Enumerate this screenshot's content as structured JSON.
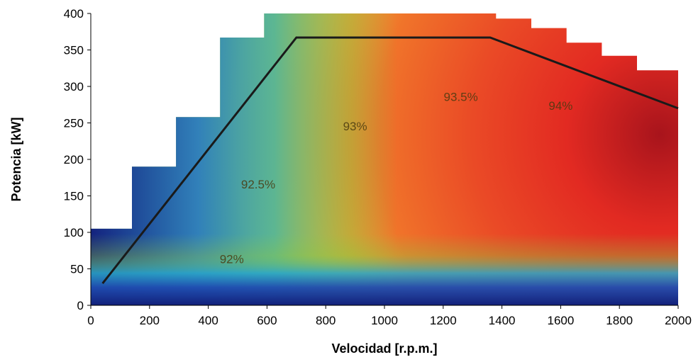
{
  "chart_data": {
    "type": "heatmap",
    "title": "",
    "xlabel": "Velocidad [r.p.m.]",
    "ylabel": "Potencia [kW]",
    "xlim": [
      0,
      2000
    ],
    "ylim": [
      0,
      400
    ],
    "xticks": [
      0,
      200,
      400,
      600,
      800,
      1000,
      1200,
      1400,
      1600,
      1800,
      2000
    ],
    "yticks": [
      0,
      50,
      100,
      150,
      200,
      250,
      300,
      350,
      400
    ],
    "grid": false,
    "colors": {
      "peak": "#a8141c",
      "high": "#e22a22",
      "mid_high": "#f0742a",
      "mid": "#f8e23a",
      "mid_low": "#8cc63f",
      "low": "#2aa6c8",
      "lowest": "#1a2a8c",
      "power_curve": "#1a1a1a"
    },
    "power_curve": {
      "x": [
        40,
        700,
        1360,
        2000
      ],
      "y": [
        30,
        367,
        367,
        270
      ]
    },
    "max_power_envelope": {
      "x": [
        0,
        140,
        140,
        290,
        290,
        440,
        440,
        590,
        590,
        720,
        720,
        1380,
        1380,
        1500,
        1500,
        1620,
        1620,
        1740,
        1740,
        1860,
        1860,
        2000
      ],
      "y": [
        105,
        105,
        190,
        190,
        258,
        258,
        367,
        367,
        400,
        400,
        400,
        400,
        393,
        393,
        380,
        380,
        360,
        360,
        342,
        342,
        322,
        322
      ]
    },
    "contour_labels": [
      {
        "text": "92%",
        "x": 480,
        "y": 58
      },
      {
        "text": "92.5%",
        "x": 570,
        "y": 160
      },
      {
        "text": "93%",
        "x": 900,
        "y": 240
      },
      {
        "text": "93.5%",
        "x": 1260,
        "y": 280
      },
      {
        "text": "94%",
        "x": 1600,
        "y": 268
      }
    ]
  }
}
